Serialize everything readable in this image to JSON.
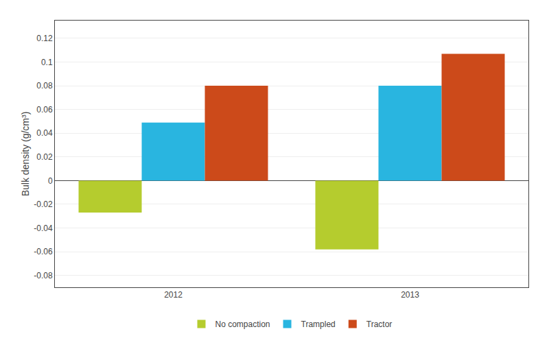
{
  "chart_data": {
    "type": "bar",
    "categories": [
      "2012",
      "2013"
    ],
    "series": [
      {
        "name": "No compaction",
        "color": "#b5cc2e",
        "values": [
          -0.027,
          -0.058
        ]
      },
      {
        "name": "Trampled",
        "color": "#29b5e0",
        "values": [
          0.049,
          0.08
        ]
      },
      {
        "name": "Tractor",
        "color": "#cc4a1a",
        "values": [
          0.08,
          0.107
        ]
      }
    ],
    "ylabel": "Bulk density (g/cm³)",
    "ylim": [
      -0.09,
      0.135
    ],
    "yticks": [
      -0.08,
      -0.06,
      -0.04,
      -0.02,
      0,
      0.02,
      0.04,
      0.06,
      0.08,
      0.1,
      0.12
    ],
    "grid": true,
    "legend": "bottom"
  }
}
